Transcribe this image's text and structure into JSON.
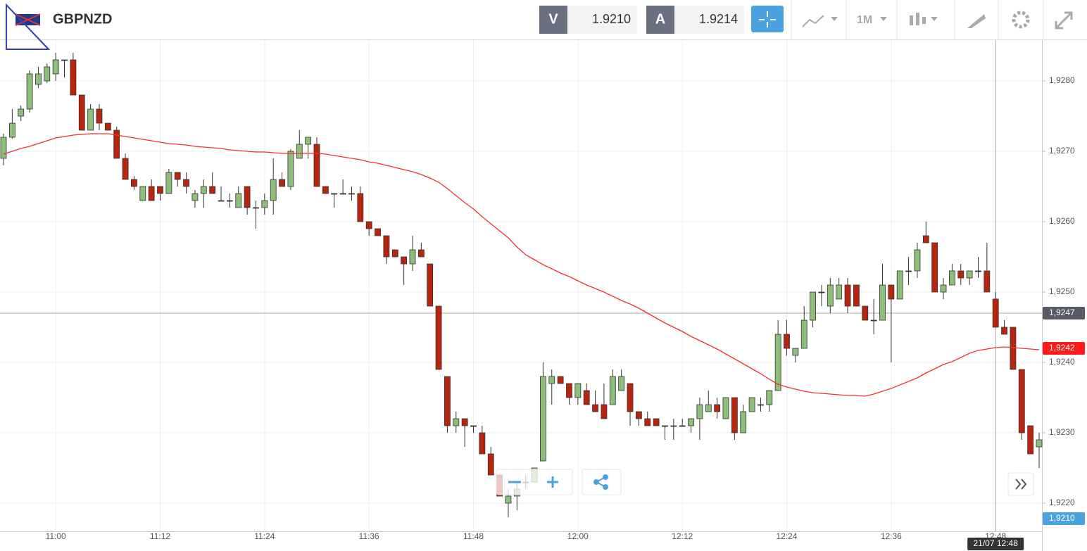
{
  "toolbar": {
    "symbol": "GBPNZD",
    "sell_label": "V",
    "sell": "1.9210",
    "buy_label": "A",
    "buy": "1.9214",
    "timeframe": "1M"
  },
  "chart_data": {
    "type": "candlestick",
    "categories": [
      null,
      null,
      null,
      null,
      null,
      null,
      "11:00",
      null,
      null,
      null,
      null,
      null,
      null,
      null,
      null,
      null,
      null,
      null,
      "11:12",
      null,
      null,
      null,
      null,
      null,
      null,
      null,
      null,
      null,
      null,
      null,
      "11:24",
      null,
      null,
      null,
      null,
      null,
      null,
      null,
      null,
      null,
      null,
      null,
      "11:36",
      null,
      null,
      null,
      null,
      null,
      null,
      null,
      null,
      null,
      null,
      null,
      "11:48",
      null,
      null,
      null,
      null,
      null,
      null,
      null,
      null,
      null,
      null,
      null,
      "12:00",
      null,
      null,
      null,
      null,
      null,
      null,
      null,
      null,
      null,
      null,
      null,
      "12:12",
      null,
      null,
      null,
      null,
      null,
      null,
      null,
      null,
      null,
      null,
      null,
      "12:24",
      null,
      null,
      null,
      null,
      null,
      null,
      null,
      null,
      null,
      null,
      null,
      "12:36",
      null,
      null,
      null,
      null,
      null,
      null,
      null,
      null,
      null,
      null,
      null,
      "12:48",
      null,
      null,
      null,
      null,
      null
    ],
    "open": [
      1.9269,
      1.9272,
      1.9275,
      1.9276,
      1.92795,
      1.928,
      1.9281,
      1.9283,
      1.9283,
      1.9278,
      1.9273,
      1.9276,
      1.9274,
      1.9273,
      1.9269,
      1.9266,
      1.9263,
      1.9265,
      1.9265,
      1.9264,
      1.9267,
      1.9266,
      1.9263,
      1.9264,
      1.9265,
      1.9263,
      1.9263,
      1.9262,
      1.9265,
      1.9262,
      1.9262,
      1.9263,
      1.9266,
      1.9265,
      1.9269,
      1.9271,
      1.9271,
      1.9265,
      1.9264,
      1.9264,
      1.9264,
      1.9264,
      1.926,
      1.9259,
      1.9258,
      1.9256,
      1.9255,
      1.9254,
      1.9256,
      1.9254,
      1.9248,
      1.9238,
      1.9231,
      1.9232,
      1.9231,
      1.923,
      1.9227,
      1.9224,
      1.922,
      1.9221,
      1.9223,
      1.9223,
      1.9226,
      1.9237,
      1.9238,
      1.9237,
      1.9235,
      1.9236,
      1.9234,
      1.9234,
      1.9234,
      1.9236,
      1.9237,
      1.9233,
      1.9232,
      1.9232,
      1.9231,
      1.9231,
      1.9231,
      1.9231,
      1.9232,
      1.9233,
      1.9234,
      1.9232,
      1.9235,
      1.923,
      1.9233,
      1.9234,
      1.9234,
      1.9236,
      1.9244,
      1.9241,
      1.9242,
      1.9246,
      1.925,
      1.9248,
      1.9249,
      1.9251,
      1.9251,
      1.9248,
      1.9246,
      1.9246,
      1.9251,
      1.9249,
      1.9253,
      1.9253,
      1.9258,
      1.9257,
      1.925,
      1.9251,
      1.9253,
      1.9252,
      1.9253,
      1.9253,
      1.9249,
      1.9245,
      1.9245,
      1.9239,
      1.9231,
      1.9228
    ],
    "high": [
      1.92725,
      1.9276,
      1.92765,
      1.92815,
      1.9282,
      1.92825,
      1.9284,
      1.9283,
      1.9284,
      1.9278,
      1.92767,
      1.92767,
      1.9274,
      1.92735,
      1.92697,
      1.92665,
      1.9265,
      1.9266,
      1.9265,
      1.92675,
      1.9267,
      1.9267,
      1.92645,
      1.9266,
      1.9267,
      1.9265,
      1.9264,
      1.9265,
      1.9265,
      1.9263,
      1.9264,
      1.9269,
      1.9267,
      1.92703,
      1.9273,
      1.9272,
      1.9272,
      1.9265,
      1.9264,
      1.9266,
      1.9265,
      1.9265,
      1.926,
      1.9259,
      1.9258,
      1.9256,
      1.9255,
      1.9258,
      1.9257,
      1.9254,
      1.9248,
      1.9238,
      1.9233,
      1.9232,
      1.9231,
      1.9231,
      1.9228,
      1.9224,
      1.9222,
      1.9223,
      1.9224,
      1.9225,
      1.924,
      1.9239,
      1.9238,
      1.9237,
      1.9237,
      1.9237,
      1.9236,
      1.9237,
      1.9239,
      1.9239,
      1.9237,
      1.9233,
      1.9233,
      1.9232,
      1.9231,
      1.9232,
      1.9232,
      1.9232,
      1.9235,
      1.9236,
      1.9235,
      1.9235,
      1.9235,
      1.9234,
      1.9235,
      1.9235,
      1.9236,
      1.9246,
      1.9246,
      1.9242,
      1.9248,
      1.925,
      1.9251,
      1.9252,
      1.9252,
      1.9252,
      1.9251,
      1.9248,
      1.9249,
      1.9254,
      1.9251,
      1.9253,
      1.9255,
      1.9257,
      1.926,
      1.9257,
      1.9252,
      1.9254,
      1.9254,
      1.9253,
      1.9255,
      1.9257,
      1.925,
      1.9246,
      1.9245,
      1.9239,
      1.9231,
      1.923
    ],
    "low": [
      1.9268,
      1.92718,
      1.92743,
      1.92755,
      1.9279,
      1.92797,
      1.928,
      1.92805,
      1.9278,
      1.9273,
      1.9273,
      1.9273,
      1.9273,
      1.9269,
      1.9266,
      1.92645,
      1.9263,
      1.9263,
      1.9263,
      1.9264,
      1.9265,
      1.9264,
      1.9262,
      1.9262,
      1.9264,
      1.9263,
      1.9262,
      1.9262,
      1.9261,
      1.9259,
      1.9261,
      1.9261,
      1.9265,
      1.92645,
      1.9269,
      1.9269,
      1.9265,
      1.9264,
      1.9262,
      1.9264,
      1.9263,
      1.926,
      1.9258,
      1.9258,
      1.9254,
      1.9255,
      1.9251,
      1.9253,
      1.9255,
      1.9248,
      1.9239,
      1.923,
      1.923,
      1.9228,
      1.923,
      1.9227,
      1.9224,
      1.9221,
      1.9218,
      1.9219,
      1.9222,
      1.9223,
      1.9226,
      1.9234,
      1.9237,
      1.9234,
      1.9234,
      1.9234,
      1.9233,
      1.9232,
      1.9234,
      1.9236,
      1.9231,
      1.9231,
      1.9231,
      1.9231,
      1.9229,
      1.9229,
      1.9231,
      1.923,
      1.9229,
      1.9233,
      1.9232,
      1.9232,
      1.9229,
      1.923,
      1.9233,
      1.9233,
      1.9233,
      1.9236,
      1.9241,
      1.924,
      1.9242,
      1.9245,
      1.9248,
      1.9247,
      1.9249,
      1.9247,
      1.9248,
      1.9246,
      1.9244,
      1.9246,
      1.924,
      1.9249,
      1.9251,
      1.9252,
      1.9257,
      1.925,
      1.9249,
      1.9251,
      1.9251,
      1.9251,
      1.9252,
      1.925,
      1.9245,
      1.9244,
      1.9239,
      1.9229,
      1.9227,
      1.9225
    ],
    "close": [
      1.9272,
      1.9274,
      1.9276,
      1.9281,
      1.9281,
      1.9282,
      1.9283,
      1.9283,
      1.9278,
      1.9273,
      1.9276,
      1.9274,
      1.9273,
      1.9269,
      1.9266,
      1.9265,
      1.9265,
      1.9263,
      1.9264,
      1.9267,
      1.9266,
      1.9265,
      1.9264,
      1.9265,
      1.9264,
      1.9263,
      1.9263,
      1.9264,
      1.9262,
      1.9262,
      1.9263,
      1.9266,
      1.9265,
      1.927,
      1.9271,
      1.9272,
      1.9265,
      1.9264,
      1.9264,
      1.9264,
      1.9264,
      1.926,
      1.9259,
      1.9258,
      1.9255,
      1.9255,
      1.9254,
      1.9256,
      1.9255,
      1.9248,
      1.9239,
      1.9231,
      1.9232,
      1.9231,
      1.9231,
      1.9227,
      1.9224,
      1.9221,
      1.9221,
      1.9222,
      1.9223,
      1.9225,
      1.9238,
      1.9238,
      1.9237,
      1.9235,
      1.9237,
      1.9234,
      1.9233,
      1.9232,
      1.9238,
      1.9238,
      1.9233,
      1.9232,
      1.9231,
      1.9231,
      1.9231,
      1.9231,
      1.9231,
      1.9232,
      1.9234,
      1.9234,
      1.9233,
      1.9235,
      1.923,
      1.9233,
      1.9235,
      1.9234,
      1.9236,
      1.9244,
      1.9242,
      1.9242,
      1.9246,
      1.925,
      1.925,
      1.9251,
      1.9251,
      1.9248,
      1.9248,
      1.9246,
      1.9246,
      1.9251,
      1.9249,
      1.9253,
      1.9253,
      1.9256,
      1.9257,
      1.925,
      1.9251,
      1.9253,
      1.9252,
      1.9253,
      1.9253,
      1.925,
      1.9245,
      1.9244,
      1.9239,
      1.923,
      1.9227,
      1.9229
    ],
    "up_color": "#8dbf7b",
    "down_color": "#b8250f",
    "moving_average": {
      "color": "#f23030",
      "values": [
        1.92696,
        1.927,
        1.92704,
        1.92707,
        1.92711,
        1.92715,
        1.92719,
        1.92721,
        1.92723,
        1.92724,
        1.92725,
        1.92725,
        1.92725,
        1.92723,
        1.92721,
        1.92719,
        1.92717,
        1.92715,
        1.92713,
        1.92711,
        1.9271,
        1.92709,
        1.92707,
        1.92706,
        1.92705,
        1.92704,
        1.92702,
        1.92701,
        1.927,
        1.92699,
        1.92699,
        1.92698,
        1.92697,
        1.92697,
        1.92697,
        1.92697,
        1.92697,
        1.92696,
        1.92694,
        1.92692,
        1.9269,
        1.92688,
        1.92685,
        1.92683,
        1.9268,
        1.92677,
        1.92674,
        1.92671,
        1.92667,
        1.92662,
        1.92656,
        1.92647,
        1.92637,
        1.92627,
        1.92618,
        1.92607,
        1.92597,
        1.92587,
        1.92577,
        1.92564,
        1.92553,
        1.92546,
        1.92539,
        1.92533,
        1.92527,
        1.92522,
        1.92516,
        1.9251,
        1.92505,
        1.925,
        1.92494,
        1.92488,
        1.92483,
        1.92477,
        1.9247,
        1.92463,
        1.92456,
        1.9245,
        1.92444,
        1.92437,
        1.92431,
        1.92425,
        1.92419,
        1.92412,
        1.92405,
        1.92398,
        1.92391,
        1.92384,
        1.92376,
        1.92369,
        1.92365,
        1.92362,
        1.92359,
        1.92357,
        1.92356,
        1.92355,
        1.92354,
        1.92353,
        1.92353,
        1.92352,
        1.92355,
        1.92359,
        1.92363,
        1.92368,
        1.92373,
        1.92378,
        1.92385,
        1.92391,
        1.92397,
        1.92401,
        1.92407,
        1.92413,
        1.92417,
        1.92419,
        1.92421,
        1.92422,
        1.92421,
        1.9242,
        1.92419,
        1.92418
      ]
    },
    "ylim": [
      1.9216,
      1.92858
    ],
    "yticks": [
      {
        "value": 1.922,
        "label": "1,9220"
      },
      {
        "value": 1.923,
        "label": "1,9230"
      },
      {
        "value": 1.924,
        "label": "1,9240"
      },
      {
        "value": 1.925,
        "label": "1,9250"
      },
      {
        "value": 1.926,
        "label": "1,9260"
      },
      {
        "value": 1.927,
        "label": "1,9270"
      },
      {
        "value": 1.928,
        "label": "1,9280"
      }
    ],
    "grid": true,
    "crosshair": {
      "price": {
        "value": 1.9247,
        "label": "1,9247"
      },
      "time_label": "21/07 12:48"
    },
    "ma_label": {
      "value": 1.9242,
      "label": "1,9242"
    },
    "bid_label": {
      "value": 1.921,
      "label": "1,9210"
    }
  }
}
